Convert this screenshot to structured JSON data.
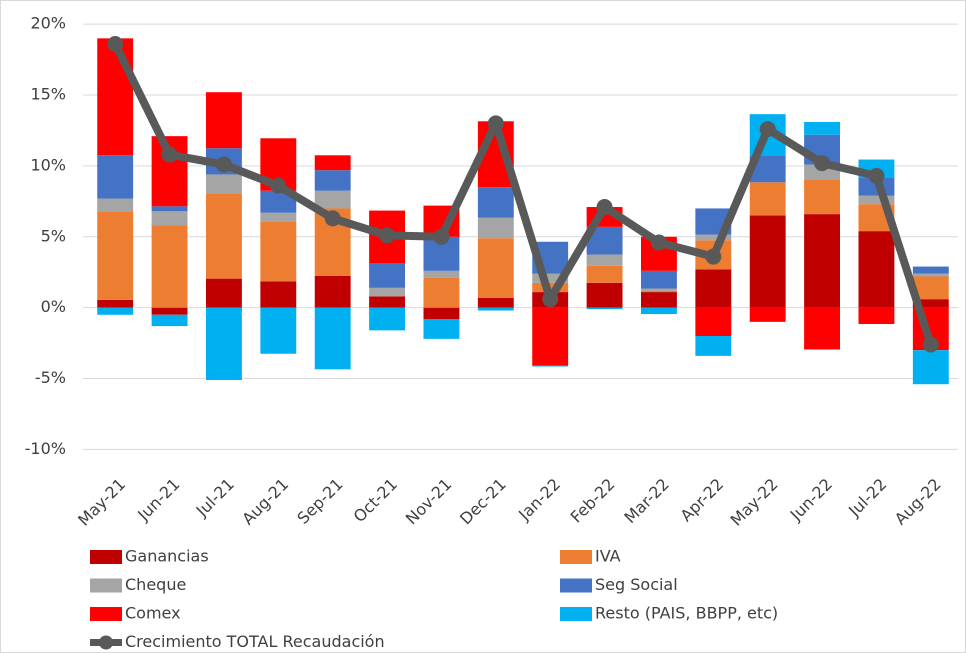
{
  "chart_data": {
    "type": "bar",
    "stacked": true,
    "categories": [
      "May-21",
      "Jun-21",
      "Jul-21",
      "Aug-21",
      "Sep-21",
      "Oct-21",
      "Nov-21",
      "Dec-21",
      "Jan-22",
      "Feb-22",
      "Mar-22",
      "Apr-22",
      "May-22",
      "Jun-22",
      "Jul-22",
      "Aug-22"
    ],
    "series": [
      {
        "name": "Ganancias",
        "color": "#c00000",
        "values": [
          0.55,
          -0.5,
          2.05,
          1.85,
          2.25,
          0.8,
          -0.8,
          0.7,
          1.1,
          1.75,
          1.1,
          2.7,
          6.5,
          6.6,
          5.4,
          0.6
        ]
      },
      {
        "name": "IVA",
        "color": "#ed7d31",
        "values": [
          6.25,
          5.8,
          6.0,
          4.25,
          4.75,
          0,
          2.1,
          4.2,
          0.65,
          1.2,
          0.1,
          2.05,
          2.35,
          2.45,
          1.9,
          1.6
        ]
      },
      {
        "name": "Cheque",
        "color": "#a5a5a5",
        "values": [
          0.9,
          1.0,
          1.35,
          0.6,
          1.25,
          0.6,
          0.5,
          1.45,
          0.65,
          0.8,
          0.15,
          0.4,
          0,
          1.05,
          0.6,
          0.2
        ]
      },
      {
        "name": "Seg Social",
        "color": "#4472c4",
        "values": [
          3.05,
          0.35,
          1.85,
          1.55,
          1.45,
          1.75,
          2.4,
          2.15,
          2.25,
          1.95,
          1.25,
          1.85,
          1.9,
          2.1,
          1.3,
          0.5
        ]
      },
      {
        "name": "Comex",
        "color": "#ff0000",
        "values": [
          8.25,
          4.95,
          3.95,
          3.7,
          1.05,
          3.7,
          2.2,
          4.65,
          -4.1,
          1.4,
          2.4,
          -2.0,
          -1.0,
          -2.95,
          -1.15,
          -3.0
        ]
      },
      {
        "name": "Resto (PAIS, BBPP, etc)",
        "color": "#00b0f0",
        "values": [
          -0.5,
          -0.8,
          -5.1,
          -3.25,
          -4.35,
          -1.6,
          -1.4,
          -0.2,
          -0.05,
          -0.1,
          -0.45,
          -1.4,
          2.9,
          0.9,
          1.25,
          -2.4
        ]
      },
      {
        "name": "Crecimiento TOTAL Recaudación",
        "color": "#595959",
        "type": "line",
        "values": [
          18.6,
          10.8,
          10.1,
          8.6,
          6.3,
          5.1,
          5.0,
          13.0,
          0.6,
          7.1,
          4.6,
          3.6,
          12.6,
          10.2,
          9.3,
          -2.6
        ]
      }
    ],
    "ylim": [
      -11,
      21
    ],
    "yticks": [
      {
        "value": -10,
        "label": "-10%"
      },
      {
        "value": -5,
        "label": "-5%"
      },
      {
        "value": 0,
        "label": "0%"
      },
      {
        "value": 5,
        "label": "5%"
      },
      {
        "value": 10,
        "label": "10%"
      },
      {
        "value": 15,
        "label": "15%"
      },
      {
        "value": 20,
        "label": "20%"
      }
    ],
    "grid": true,
    "legend": "bottom"
  }
}
